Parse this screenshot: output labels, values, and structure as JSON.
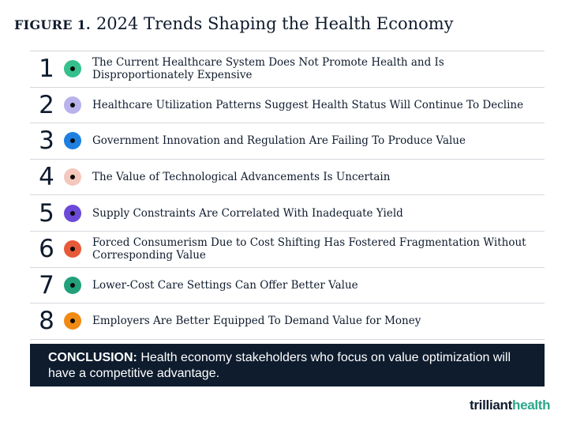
{
  "figure": {
    "label": "FIGURE 1.",
    "title": "2024 Trends Shaping the Health Economy"
  },
  "trends": [
    {
      "number": "1",
      "text": "The Current Healthcare System Does Not Promote Health and Is Disproportionately Expensive",
      "color": "#35c08e"
    },
    {
      "number": "2",
      "text": "Healthcare Utilization Patterns Suggest Health Status Will Continue To Decline",
      "color": "#b9b2ea"
    },
    {
      "number": "3",
      "text": "Government Innovation and Regulation Are Failing To Produce Value",
      "color": "#1e7fe0"
    },
    {
      "number": "4",
      "text": "The Value of Technological Advancements Is Uncertain",
      "color": "#f4c8bc"
    },
    {
      "number": "5",
      "text": "Supply Constraints Are Correlated With Inadequate Yield",
      "color": "#6c4ad8"
    },
    {
      "number": "6",
      "text": "Forced Consumerism Due to Cost Shifting Has Fostered Fragmentation Without Corresponding Value",
      "color": "#e65a3a"
    },
    {
      "number": "7",
      "text": "Lower-Cost Care Settings Can Offer Better Value",
      "color": "#22a07a"
    },
    {
      "number": "8",
      "text": "Employers Are Better Equipped To Demand Value for Money",
      "color": "#f08a13"
    }
  ],
  "conclusion": {
    "label": "CONCLUSION:",
    "text": "Health economy stakeholders who focus on value optimization will have a competitive advantage."
  },
  "logo": {
    "part1": "trilliant",
    "part2": "health",
    "accent_color": "#2aa889"
  }
}
